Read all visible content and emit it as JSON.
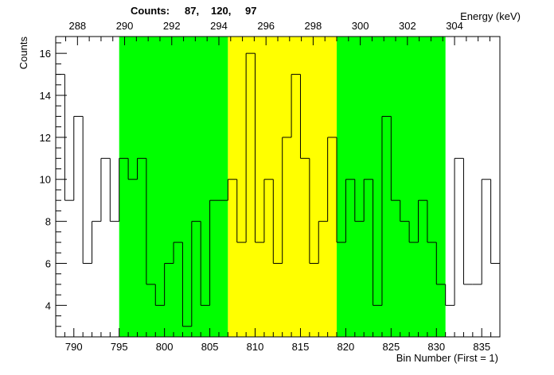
{
  "chart_data": {
    "type": "histogram",
    "title": "",
    "counts_label": "Counts:",
    "counts_values": [
      "87,",
      "120,",
      "97"
    ],
    "xlabel": "Bin Number (First = 1)",
    "ylabel": "Counts",
    "top_axis_label": "Energy (keV)",
    "xlim": [
      788,
      837
    ],
    "ylim": [
      2.5,
      16.8
    ],
    "grid": false,
    "bin_start": 788,
    "bin_width": 1,
    "values": [
      15,
      9,
      13,
      6,
      8,
      11,
      8,
      11,
      10,
      11,
      5,
      4,
      6,
      7,
      3,
      8,
      4,
      9,
      9,
      10,
      7,
      16,
      7,
      10,
      6,
      12,
      15,
      11,
      6,
      8,
      12,
      7,
      10,
      8,
      10,
      4,
      13,
      9,
      8,
      7,
      9,
      7,
      5,
      4,
      11,
      5,
      5,
      10,
      6
    ],
    "regions": [
      {
        "from": 795,
        "to": 807,
        "color": "#00ff00"
      },
      {
        "from": 807,
        "to": 819,
        "color": "#ffff00"
      },
      {
        "from": 819,
        "to": 831,
        "color": "#00ff00"
      }
    ],
    "x_ticks": [
      "790",
      "795",
      "800",
      "805",
      "810",
      "815",
      "820",
      "825",
      "830",
      "835"
    ],
    "y_ticks": [
      "4",
      "6",
      "8",
      "10",
      "12",
      "14",
      "16"
    ],
    "energy_ticks": [
      "288",
      "290",
      "292",
      "294",
      "296",
      "298",
      "300",
      "302",
      "304"
    ],
    "energy_tick_bins": [
      790.4,
      795.6,
      800.8,
      806.0,
      811.2,
      816.4,
      821.6,
      826.8,
      832.0
    ]
  }
}
